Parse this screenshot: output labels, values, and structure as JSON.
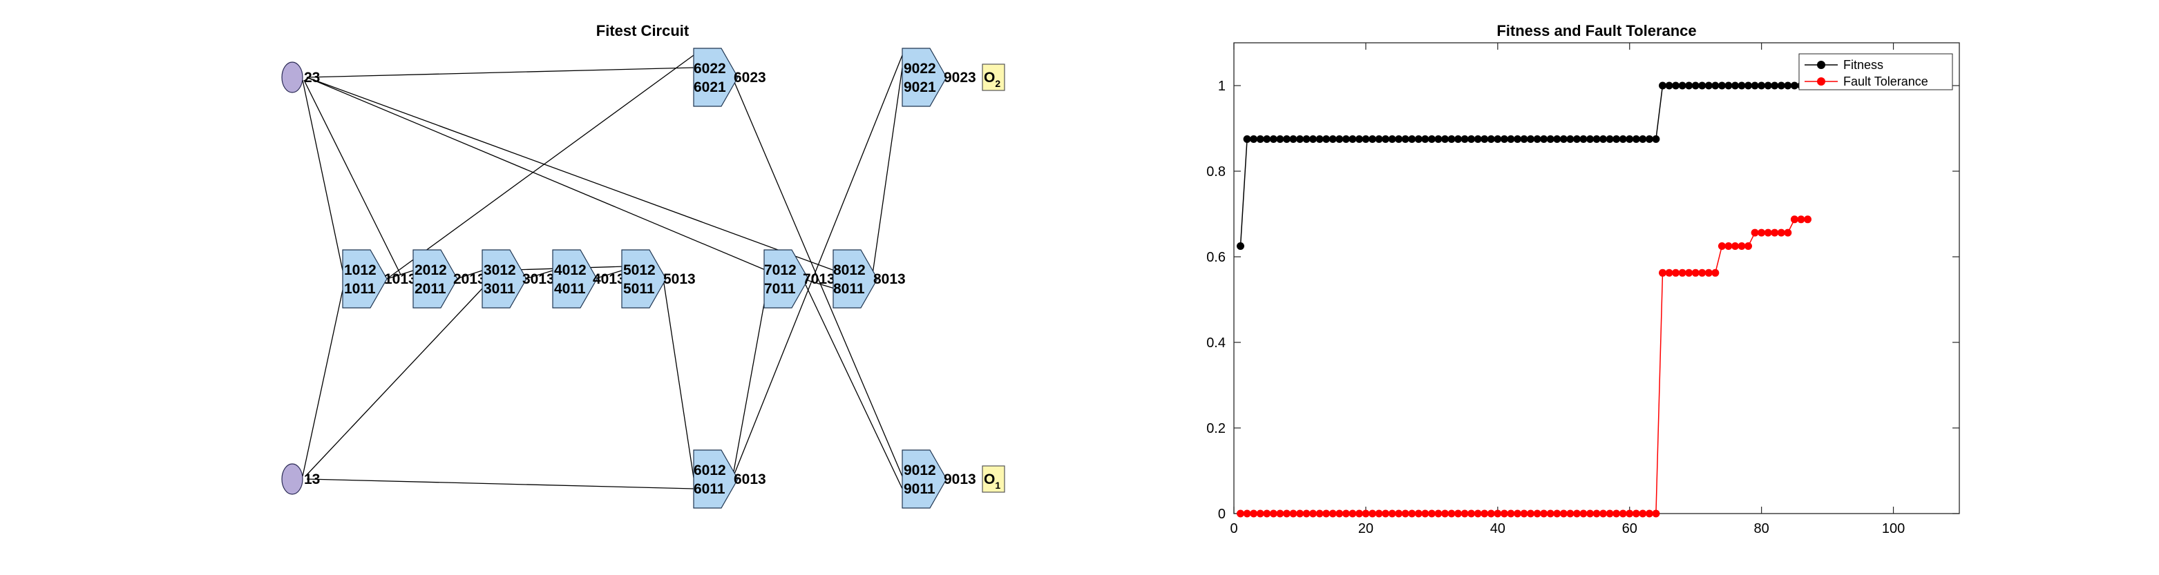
{
  "circuit": {
    "title": "Fitest Circuit",
    "inputs": [
      {
        "id": "in23",
        "label": "23"
      },
      {
        "id": "in13",
        "label": "13"
      }
    ],
    "gates": [
      {
        "id": "g1",
        "in_top": "1012",
        "in_bot": "1011",
        "out": "1013"
      },
      {
        "id": "g2",
        "in_top": "2012",
        "in_bot": "2011",
        "out": "2013"
      },
      {
        "id": "g3",
        "in_top": "3012",
        "in_bot": "3011",
        "out": "3013"
      },
      {
        "id": "g4",
        "in_top": "4012",
        "in_bot": "4011",
        "out": "4013"
      },
      {
        "id": "g5",
        "in_top": "5012",
        "in_bot": "5011",
        "out": "5013"
      },
      {
        "id": "g6a",
        "in_top": "6022",
        "in_bot": "6021",
        "out": "6023"
      },
      {
        "id": "g6b",
        "in_top": "6012",
        "in_bot": "6011",
        "out": "6013"
      },
      {
        "id": "g7",
        "in_top": "7012",
        "in_bot": "7011",
        "out": "7013"
      },
      {
        "id": "g8",
        "in_top": "8012",
        "in_bot": "8011",
        "out": "8013"
      },
      {
        "id": "g9a",
        "in_top": "9022",
        "in_bot": "9021",
        "out": "9023"
      },
      {
        "id": "g9b",
        "in_top": "9012",
        "in_bot": "9011",
        "out": "9013"
      }
    ],
    "outputs": [
      {
        "id": "o2",
        "label": "O",
        "sub": "2"
      },
      {
        "id": "o1",
        "label": "O",
        "sub": "1"
      }
    ],
    "colors": {
      "gate": "#b3d6f2",
      "input": "#b7acd9",
      "output": "#fdf7b0"
    }
  },
  "chart_data": {
    "type": "line",
    "title": "Fitness and Fault Tolerance",
    "xlabel": "",
    "ylabel": "",
    "xlim": [
      0,
      110
    ],
    "ylim": [
      0,
      1.1
    ],
    "xticks": [
      0,
      20,
      40,
      60,
      80,
      100
    ],
    "yticks": [
      0,
      0.2,
      0.4,
      0.6,
      0.8,
      1
    ],
    "grid": false,
    "legend_position": "top-right",
    "series": [
      {
        "name": "Fitness",
        "color": "#000000",
        "marker": "circle",
        "steps": [
          {
            "from": 1,
            "to": 1,
            "y": 0.625
          },
          {
            "from": 2,
            "to": 64,
            "y": 0.875
          },
          {
            "from": 65,
            "to": 87,
            "y": 1
          }
        ]
      },
      {
        "name": "Fault Tolerance",
        "color": "#ff0000",
        "marker": "circle",
        "steps": [
          {
            "from": 1,
            "to": 64,
            "y": 0
          },
          {
            "from": 65,
            "to": 73,
            "y": 0.5625
          },
          {
            "from": 74,
            "to": 78,
            "y": 0.625
          },
          {
            "from": 79,
            "to": 84,
            "y": 0.65625
          },
          {
            "from": 85,
            "to": 87,
            "y": 0.6875
          }
        ]
      }
    ]
  }
}
